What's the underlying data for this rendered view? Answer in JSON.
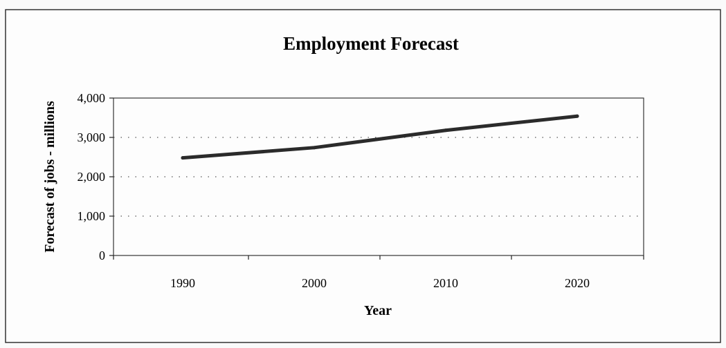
{
  "chart_data": {
    "type": "line",
    "title": "Employment Forecast",
    "xlabel": "Year",
    "ylabel": "Forecast of jobs - millions",
    "categories": [
      "1990",
      "2000",
      "2010",
      "2020"
    ],
    "series": [
      {
        "values": [
          2480,
          2740,
          3180,
          3540
        ]
      }
    ],
    "ylim": [
      0,
      4000
    ],
    "yticks": [
      "0",
      "1,000",
      "2,000",
      "3,000",
      "4,000"
    ],
    "grid": "horizontal dotted",
    "legend": "none",
    "colors": {
      "line": "#2b2b2b",
      "axis": "#222222",
      "grid": "#555555",
      "frame": "#333333"
    }
  }
}
